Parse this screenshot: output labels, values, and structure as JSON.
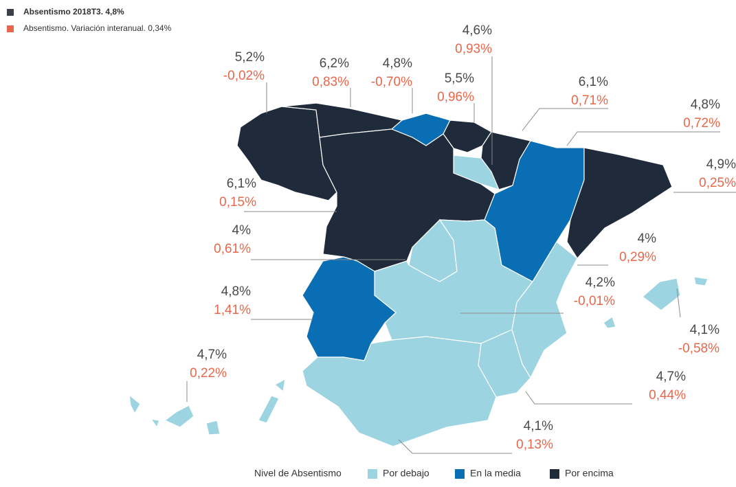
{
  "header": {
    "items": [
      {
        "text": "Absentismo 2018T3. 4,8%",
        "color": "#3a3f4a"
      },
      {
        "text": "Absentismo. Variación interanual. 0,34%",
        "color": "#e8674a"
      }
    ]
  },
  "legend": {
    "title": "Nivel de Absentismo",
    "items": [
      {
        "label": "Por debajo",
        "color": "#9dd4e2"
      },
      {
        "label": "En la media",
        "color": "#0a6eb4"
      },
      {
        "label": "Por encima",
        "color": "#1f2a3a"
      }
    ]
  },
  "regions": [
    {
      "rate": "5,2%",
      "change": "-0,02%",
      "level": "Por encima"
    },
    {
      "rate": "6,2%",
      "change": "0,83%",
      "level": "Por encima"
    },
    {
      "rate": "4,8%",
      "change": "-0,70%",
      "level": "En la media"
    },
    {
      "rate": "5,5%",
      "change": "0,96%",
      "level": "Por encima"
    },
    {
      "rate": "4,6%",
      "change": "0,93%",
      "level": "Por debajo"
    },
    {
      "rate": "6,1%",
      "change": "0,71%",
      "level": "Por encima"
    },
    {
      "rate": "4,8%",
      "change": "0,72%",
      "level": "En la media"
    },
    {
      "rate": "4,9%",
      "change": "0,25%",
      "level": "Por encima"
    },
    {
      "rate": "6,1%",
      "change": "0,15%",
      "level": "Por encima"
    },
    {
      "rate": "4%",
      "change": "0,61%",
      "level": "Por debajo"
    },
    {
      "rate": "4%",
      "change": "0,29%",
      "level": "Por debajo"
    },
    {
      "rate": "4,2%",
      "change": "-0,01%",
      "level": "Por debajo"
    },
    {
      "rate": "4,1%",
      "change": "-0,58%",
      "level": "Por debajo"
    },
    {
      "rate": "4,8%",
      "change": "1,41%",
      "level": "En la media"
    },
    {
      "rate": "4,7%",
      "change": "0,22%",
      "level": "Por debajo"
    },
    {
      "rate": "4,7%",
      "change": "0,44%",
      "level": "Por debajo"
    },
    {
      "rate": "4,1%",
      "change": "0,13%",
      "level": "Por debajo"
    }
  ]
}
